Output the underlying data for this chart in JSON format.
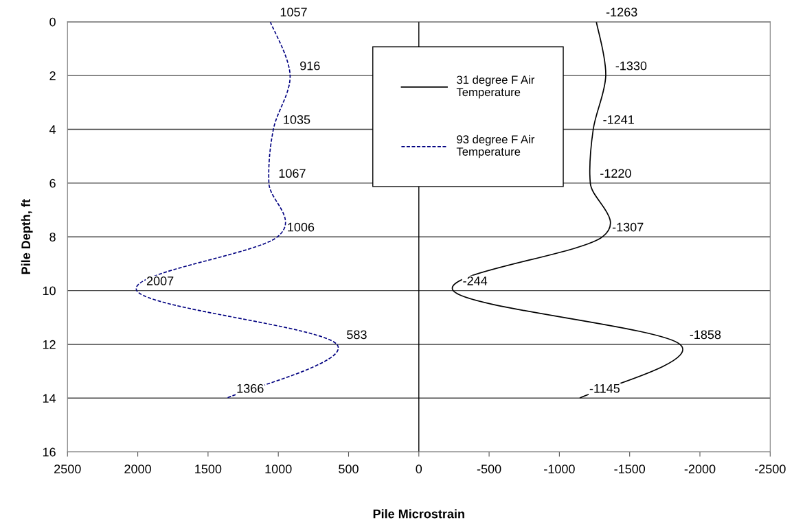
{
  "chart_data": {
    "type": "line",
    "orientation": "horizontal",
    "xlabel": "Pile Microstrain",
    "ylabel": "Pile Depth, ft",
    "x": [
      0,
      2,
      4,
      6,
      8,
      10,
      12,
      14
    ],
    "series": [
      {
        "name": "31 degree F Air Temperature",
        "color": "#000000",
        "line_style": "solid",
        "values": [
          -1263,
          -1330,
          -1241,
          -1220,
          -1307,
          -244,
          -1858,
          -1145
        ]
      },
      {
        "name": "93 degree F Air Temperature",
        "color": "#000080",
        "line_style": "dashed",
        "values": [
          1057,
          916,
          1035,
          1067,
          1006,
          2007,
          583,
          1366
        ]
      }
    ],
    "xlim": [
      2500,
      -2500
    ],
    "xticks": [
      2500,
      2000,
      1500,
      1000,
      500,
      0,
      -500,
      -1000,
      -1500,
      -2000,
      -2500
    ],
    "ylim": [
      16,
      0
    ],
    "yticks": [
      0,
      2,
      4,
      6,
      8,
      10,
      12,
      14,
      16
    ],
    "ref_lines": [
      {
        "axis": "x",
        "value": 0,
        "color": "#000000"
      }
    ],
    "grid": "y",
    "legend": "top",
    "marker": "none",
    "data_labels": true
  }
}
